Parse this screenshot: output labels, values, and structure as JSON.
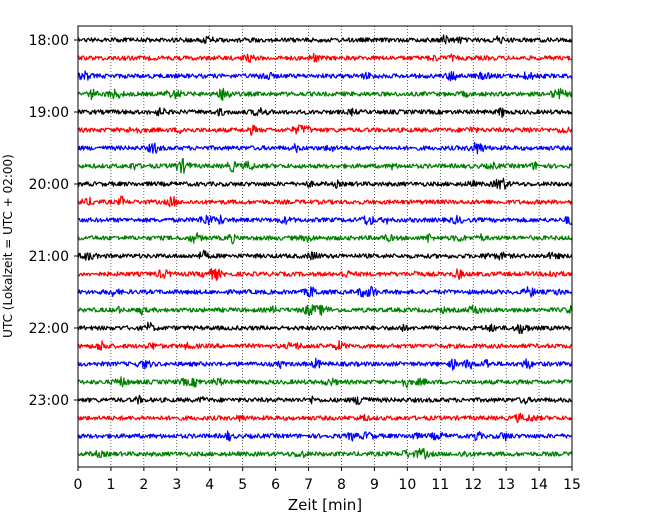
{
  "chart_data": {
    "type": "line",
    "chart_kind": "helicorder",
    "title": "",
    "xlabel": "Zeit  [min]",
    "ylabel": "UTC (Lokalzeit = UTC + 02:00)",
    "xlim": [
      0,
      15
    ],
    "x_ticks": [
      0,
      1,
      2,
      3,
      4,
      5,
      6,
      7,
      8,
      9,
      10,
      11,
      12,
      13,
      14,
      15
    ],
    "x_grid": true,
    "y_grid": false,
    "legend": "none",
    "trace_interval_minutes": 15,
    "trace_colors_cycle": [
      "#000000",
      "#ff0000",
      "#0000ff",
      "#008000"
    ],
    "y_tick_labels": [
      {
        "label": "18:00",
        "trace_index": 0
      },
      {
        "label": "19:00",
        "trace_index": 4
      },
      {
        "label": "20:00",
        "trace_index": 8
      },
      {
        "label": "21:00",
        "trace_index": 12
      },
      {
        "label": "22:00",
        "trace_index": 16
      },
      {
        "label": "23:00",
        "trace_index": 20
      }
    ],
    "traces": [
      {
        "start": "18:00",
        "color": "#000000"
      },
      {
        "start": "18:15",
        "color": "#ff0000"
      },
      {
        "start": "18:30",
        "color": "#0000ff"
      },
      {
        "start": "18:45",
        "color": "#008000"
      },
      {
        "start": "19:00",
        "color": "#000000"
      },
      {
        "start": "19:15",
        "color": "#ff0000"
      },
      {
        "start": "19:30",
        "color": "#0000ff"
      },
      {
        "start": "19:45",
        "color": "#008000"
      },
      {
        "start": "20:00",
        "color": "#000000"
      },
      {
        "start": "20:15",
        "color": "#ff0000"
      },
      {
        "start": "20:30",
        "color": "#0000ff"
      },
      {
        "start": "20:45",
        "color": "#008000"
      },
      {
        "start": "21:00",
        "color": "#000000"
      },
      {
        "start": "21:15",
        "color": "#ff0000"
      },
      {
        "start": "21:30",
        "color": "#0000ff"
      },
      {
        "start": "21:45",
        "color": "#008000"
      },
      {
        "start": "22:00",
        "color": "#000000"
      },
      {
        "start": "22:15",
        "color": "#ff0000"
      },
      {
        "start": "22:30",
        "color": "#0000ff"
      },
      {
        "start": "22:45",
        "color": "#008000"
      },
      {
        "start": "23:00",
        "color": "#000000"
      },
      {
        "start": "23:15",
        "color": "#ff0000"
      },
      {
        "start": "23:30",
        "color": "#0000ff"
      },
      {
        "start": "23:45",
        "color": "#008000"
      }
    ]
  }
}
